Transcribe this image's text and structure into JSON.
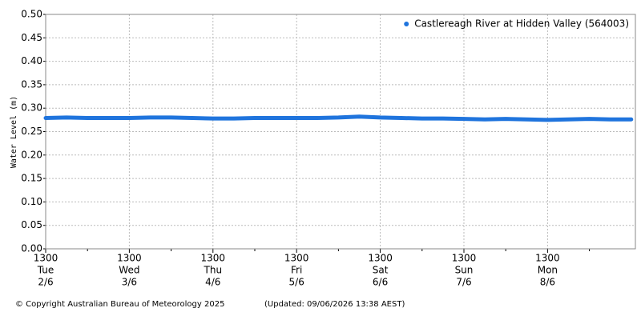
{
  "chart_data": {
    "type": "line",
    "y_label": "Water Level (m)",
    "series": [
      {
        "name": "Castlereagh River at Hidden Valley (564003)",
        "color": "#1f74dd",
        "x": [
          0,
          0.25,
          0.5,
          0.75,
          1,
          1.25,
          1.5,
          1.75,
          2,
          2.25,
          2.5,
          2.75,
          3,
          3.25,
          3.5,
          3.75,
          4,
          4.25,
          4.5,
          4.75,
          5,
          5.25,
          5.5,
          5.75,
          6,
          6.25,
          6.5,
          6.75,
          7
        ],
        "values": [
          0.279,
          0.28,
          0.279,
          0.279,
          0.279,
          0.28,
          0.28,
          0.279,
          0.278,
          0.278,
          0.279,
          0.279,
          0.279,
          0.279,
          0.28,
          0.282,
          0.28,
          0.279,
          0.278,
          0.278,
          0.277,
          0.276,
          0.277,
          0.276,
          0.275,
          0.276,
          0.277,
          0.276,
          0.276
        ]
      }
    ],
    "xlim": [
      0,
      7.05
    ],
    "xticks": [
      {
        "value": 0,
        "label": "1300",
        "day": "Tue",
        "date": "2/6"
      },
      {
        "value": 1,
        "label": "1300",
        "day": "Wed",
        "date": "3/6"
      },
      {
        "value": 2,
        "label": "1300",
        "day": "Thu",
        "date": "4/6"
      },
      {
        "value": 3,
        "label": "1300",
        "day": "Fri",
        "date": "5/6"
      },
      {
        "value": 4,
        "label": "1300",
        "day": "Sat",
        "date": "6/6"
      },
      {
        "value": 5,
        "label": "1300",
        "day": "Sun",
        "date": "7/6"
      },
      {
        "value": 6,
        "label": "1300",
        "day": "Mon",
        "date": "8/6"
      }
    ],
    "xminor_ticks": [
      0.5,
      1.5,
      2.5,
      3.5,
      4.5,
      5.5,
      6.5
    ],
    "ylim": [
      0,
      0.5
    ],
    "yticks": [
      {
        "value": 0,
        "label": "0.00"
      },
      {
        "value": 0.05,
        "label": "0.05"
      },
      {
        "value": 0.1,
        "label": "0.10"
      },
      {
        "value": 0.15,
        "label": "0.15"
      },
      {
        "value": 0.2,
        "label": "0.20"
      },
      {
        "value": 0.25,
        "label": "0.25"
      },
      {
        "value": 0.3,
        "label": "0.30"
      },
      {
        "value": 0.35,
        "label": "0.35"
      },
      {
        "value": 0.4,
        "label": "0.40"
      },
      {
        "value": 0.45,
        "label": "0.45"
      },
      {
        "value": 0.5,
        "label": "0.50"
      }
    ],
    "grid": true,
    "legend": "top-right",
    "copyright": "© Copyright Australian Bureau of Meteorology 2025",
    "updated": "(Updated: 09/06/2026 13:38 AEST)"
  }
}
